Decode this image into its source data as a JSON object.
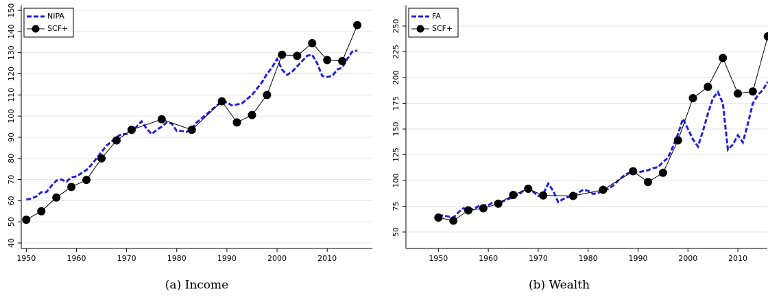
{
  "chart_data": [
    {
      "type": "line",
      "caption": "(a) Income",
      "xlim": [
        1949,
        2019
      ],
      "xticks": [
        1950,
        1960,
        1970,
        1980,
        1990,
        2000,
        2010
      ],
      "ylim": [
        37.4,
        152.3
      ],
      "yticks": [
        40,
        50,
        60,
        70,
        80,
        90,
        100,
        110,
        120,
        130,
        140,
        150
      ],
      "grid": true,
      "legend": "upper-left",
      "series": [
        {
          "name": "NIPA",
          "color": "#1f1fe0",
          "dash": true,
          "x": [
            1950,
            1951,
            1952,
            1953,
            1954,
            1955,
            1956,
            1957,
            1958,
            1959,
            1960,
            1961,
            1962,
            1963,
            1964,
            1965,
            1966,
            1967,
            1968,
            1969,
            1970,
            1971,
            1972,
            1973,
            1974,
            1975,
            1976,
            1977,
            1978,
            1979,
            1980,
            1981,
            1982,
            1983,
            1984,
            1985,
            1986,
            1987,
            1988,
            1989,
            1990,
            1991,
            1992,
            1993,
            1994,
            1995,
            1996,
            1997,
            1998,
            1999,
            2000,
            2001,
            2002,
            2003,
            2004,
            2005,
            2006,
            2007,
            2008,
            2009,
            2010,
            2011,
            2012,
            2013,
            2014,
            2015,
            2016
          ],
          "values": [
            60.5,
            61,
            62,
            64,
            64,
            67,
            69.5,
            70,
            69,
            71,
            71.5,
            73,
            74.5,
            77,
            80,
            83,
            86,
            88,
            90,
            91.5,
            91.5,
            92.5,
            95,
            97.5,
            94,
            91.5,
            93.5,
            95,
            97,
            96.5,
            93,
            93,
            92.5,
            94,
            97,
            99,
            101,
            103,
            105,
            107,
            106.5,
            105,
            105.5,
            106,
            108,
            110,
            113,
            116,
            120,
            123,
            127,
            122,
            119.5,
            121,
            123.5,
            126,
            128.5,
            129,
            125,
            119,
            118.5,
            119,
            122,
            123,
            127,
            130.5,
            131
          ]
        },
        {
          "name": "SCF+",
          "color": "#000000",
          "marker": "circle",
          "x": [
            1950,
            1953,
            1956,
            1959,
            1962,
            1965,
            1968,
            1971,
            1977,
            1983,
            1989,
            1992,
            1995,
            1998,
            2001,
            2004,
            2007,
            2010,
            2013,
            2016
          ],
          "values": [
            51,
            55,
            61.5,
            66.5,
            69.8,
            80,
            88.5,
            93.5,
            98.5,
            93.5,
            107,
            97,
            100.5,
            110,
            129,
            128.5,
            134.5,
            126.5,
            126,
            143
          ]
        }
      ]
    },
    {
      "type": "line",
      "caption": "(b) Wealth",
      "xlim": [
        1943.5,
        2015.9
      ],
      "xticks": [
        1950,
        1960,
        1970,
        1980,
        1990,
        2000,
        2010
      ],
      "ylim": [
        34,
        270
      ],
      "yticks": [
        50,
        75,
        100,
        125,
        150,
        175,
        200,
        225,
        250
      ],
      "grid": true,
      "legend": "upper-left",
      "series": [
        {
          "name": "FA",
          "color": "#1f1fe0",
          "dash": true,
          "x": [
            1950,
            1951,
            1952,
            1953,
            1954,
            1955,
            1956,
            1957,
            1958,
            1959,
            1960,
            1961,
            1962,
            1963,
            1964,
            1965,
            1966,
            1967,
            1968,
            1969,
            1970,
            1971,
            1972,
            1973,
            1974,
            1975,
            1976,
            1977,
            1978,
            1979,
            1980,
            1981,
            1982,
            1983,
            1984,
            1985,
            1986,
            1987,
            1988,
            1989,
            1990,
            1991,
            1992,
            1993,
            1994,
            1995,
            1996,
            1997,
            1998,
            1999,
            2000,
            2001,
            2002,
            2003,
            2004,
            2005,
            2006,
            2007,
            2008,
            2009,
            2010,
            2011,
            2012,
            2013,
            2014,
            2015,
            2016
          ],
          "values": [
            66,
            66,
            65,
            64,
            69,
            73,
            72,
            72,
            75,
            76,
            76,
            79,
            78,
            80,
            82,
            84,
            86,
            90,
            96,
            89,
            85,
            87,
            97,
            90,
            79,
            82,
            84,
            85,
            88,
            91,
            90,
            87,
            88,
            90,
            92,
            95,
            100,
            104,
            107,
            108,
            108,
            109,
            110,
            112,
            113,
            118,
            122,
            133,
            145,
            160,
            150,
            140,
            133,
            148,
            165,
            180,
            186,
            175,
            130,
            135,
            144,
            137,
            155,
            175,
            183,
            188,
            196
          ]
        },
        {
          "name": "SCF+",
          "color": "#000000",
          "marker": "circle",
          "x": [
            1950,
            1953,
            1956,
            1959,
            1962,
            1965,
            1968,
            1971,
            1977,
            1983,
            1989,
            1992,
            1995,
            1998,
            2001,
            2004,
            2007,
            2010,
            2013,
            2016
          ],
          "values": [
            64,
            61,
            71,
            73,
            77.5,
            86,
            92,
            85.5,
            85,
            91,
            109,
            98.5,
            107.5,
            139,
            180,
            191,
            219,
            184.5,
            186.5,
            240
          ]
        }
      ]
    }
  ]
}
